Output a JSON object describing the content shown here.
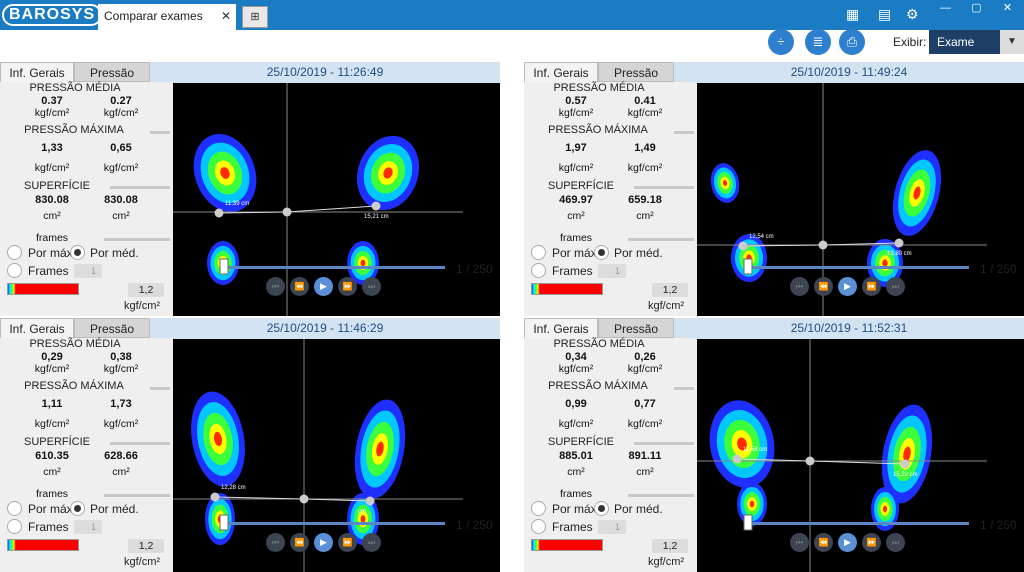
{
  "app": {
    "logo": "BAROSYS",
    "tab_title": "Comparar exames",
    "tab_close": "✕",
    "new_tab": "⊞"
  },
  "toolbar": {
    "exibir_label": "Exibir:",
    "exibir_value": "Exame",
    "exibir_arrow": "▼",
    "icon_compare": "÷",
    "icon_report": "≣",
    "icon_print": "⎙"
  },
  "window": {
    "minimize": "—",
    "maximize": "▢",
    "close": "✕"
  },
  "colors": {
    "titlebar": "#1b7cc4",
    "header": "#d4e3f1",
    "select": "#1e3f66"
  },
  "labels": {
    "tab_general": "Inf. Gerais",
    "tab_pressure": "Pressão",
    "pressao_media": "PRESSÃO MÉDIA",
    "pressao_maxima": "PRESSÃO MÁXIMA",
    "superficie": "SUPERFÍCIE",
    "frames": "frames",
    "por_max": "Por máx.",
    "por_med": "Por méd.",
    "frames_radio": "Frames",
    "kgf": "kgf/cm²",
    "cm2": "cm²"
  },
  "panels": [
    {
      "datetime": "25/10/2019 - 11:26:49",
      "media": [
        "0.37",
        "0.27"
      ],
      "maxima": [
        "1,33",
        "0,65"
      ],
      "superficie": [
        "830.08",
        "830.08"
      ],
      "frames_value": "1",
      "scale": "1,2",
      "frame_counter": "1 / 250",
      "measure_left": "11,39 cm",
      "measure_right": "15,21 cm"
    },
    {
      "datetime": "25/10/2019 - 11:49:24",
      "media": [
        "0.57",
        "0.41"
      ],
      "maxima": [
        "1,97",
        "1,49"
      ],
      "superficie": [
        "469.97",
        "659.18"
      ],
      "frames_value": "1",
      "scale": "1,2",
      "frame_counter": "1 / 250",
      "measure_left": "12,54 cm",
      "measure_right": "13,80 cm"
    },
    {
      "datetime": "25/10/2019 - 11:46:29",
      "media": [
        "0,29",
        "0,38"
      ],
      "maxima": [
        "1,11",
        "1,73"
      ],
      "superficie": [
        "610.35",
        "628.66"
      ],
      "frames_value": "1",
      "scale": "1,2",
      "frame_counter": "1 / 250",
      "measure_left": "12,28 cm",
      "measure_right": "cm"
    },
    {
      "datetime": "25/10/2019 - 11:52:31",
      "media": [
        "0,34",
        "0,26"
      ],
      "maxima": [
        "0,99",
        "0,77"
      ],
      "superficie": [
        "885.01",
        "891.11"
      ],
      "frames_value": "1",
      "scale": "1,2",
      "frame_counter": "1 / 250",
      "measure_left": "11,58 cm",
      "measure_right": "15,22 cm"
    }
  ],
  "playback": {
    "first": "⏮",
    "prev": "⏪",
    "play": "▶",
    "next": "⏩",
    "last": "⏭"
  }
}
